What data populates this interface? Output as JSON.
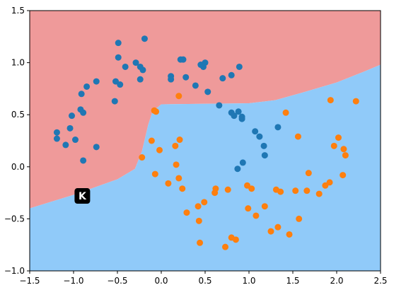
{
  "chart_data": {
    "type": "scatter",
    "title": "",
    "xlabel": "",
    "ylabel": "",
    "xlim": [
      -1.5,
      2.5
    ],
    "ylim": [
      -1.0,
      1.5
    ],
    "grid": false,
    "legend": "none",
    "x_ticks": [
      "−1.5",
      "−1.0",
      "−0.5",
      "0.0",
      "0.5",
      "1.0",
      "1.5",
      "2.0",
      "2.5"
    ],
    "x_tick_values": [
      -1.5,
      -1.0,
      -0.5,
      0.0,
      0.5,
      1.0,
      1.5,
      2.0,
      2.5
    ],
    "y_ticks": [
      "−1.0",
      "−0.5",
      "0.0",
      "0.5",
      "1.0",
      "1.5"
    ],
    "y_tick_values": [
      -1.0,
      -0.5,
      0.0,
      0.5,
      1.0,
      1.5
    ],
    "regions": {
      "upper_color": "#ef9a9a",
      "lower_color": "#90caf9",
      "boundary": [
        [
          -1.5,
          -0.4
        ],
        [
          -1.0,
          -0.27
        ],
        [
          -0.5,
          -0.12
        ],
        [
          -0.3,
          -0.02
        ],
        [
          -0.22,
          0.15
        ],
        [
          -0.15,
          0.4
        ],
        [
          -0.1,
          0.53
        ],
        [
          0.0,
          0.6
        ],
        [
          0.5,
          0.605
        ],
        [
          1.0,
          0.61
        ],
        [
          1.3,
          0.64
        ],
        [
          1.6,
          0.71
        ],
        [
          2.0,
          0.81
        ],
        [
          2.3,
          0.91
        ],
        [
          2.5,
          0.98
        ]
      ]
    },
    "series": [
      {
        "color": "#1f77b4",
        "points": [
          [
            -1.19,
            0.27
          ],
          [
            -1.19,
            0.33
          ],
          [
            -1.09,
            0.21
          ],
          [
            -1.04,
            0.37
          ],
          [
            -1.02,
            0.49
          ],
          [
            -0.98,
            0.26
          ],
          [
            -0.92,
            0.55
          ],
          [
            -0.91,
            0.7
          ],
          [
            -0.89,
            0.52
          ],
          [
            -0.85,
            0.77
          ],
          [
            -0.74,
            0.82
          ],
          [
            -0.74,
            0.19
          ],
          [
            -0.89,
            0.06
          ],
          [
            -0.53,
            0.63
          ],
          [
            -0.52,
            0.82
          ],
          [
            -0.49,
            1.19
          ],
          [
            -0.49,
            1.05
          ],
          [
            -0.47,
            0.79
          ],
          [
            -0.41,
            0.96
          ],
          [
            -0.29,
            1.0
          ],
          [
            -0.24,
            0.84
          ],
          [
            -0.24,
            0.96
          ],
          [
            -0.21,
            0.93
          ],
          [
            -0.19,
            1.23
          ],
          [
            0.11,
            0.87
          ],
          [
            0.11,
            0.84
          ],
          [
            0.22,
            1.03
          ],
          [
            0.25,
            1.03
          ],
          [
            0.28,
            0.86
          ],
          [
            0.39,
            0.78
          ],
          [
            0.45,
            0.98
          ],
          [
            0.48,
            0.96
          ],
          [
            0.5,
            1.0
          ],
          [
            0.53,
            0.72
          ],
          [
            0.66,
            0.59
          ],
          [
            0.7,
            0.85
          ],
          [
            0.8,
            0.88
          ],
          [
            0.89,
            0.96
          ],
          [
            0.8,
            0.52
          ],
          [
            0.83,
            0.49
          ],
          [
            0.88,
            0.53
          ],
          [
            0.92,
            0.48
          ],
          [
            0.92,
            0.46
          ],
          [
            0.87,
            -0.02
          ],
          [
            0.93,
            0.04
          ],
          [
            1.07,
            0.34
          ],
          [
            1.12,
            0.29
          ],
          [
            1.17,
            0.2
          ],
          [
            1.18,
            0.11
          ],
          [
            1.33,
            0.38
          ]
        ]
      },
      {
        "color": "#ff7f0e",
        "points": [
          [
            -0.11,
            0.25
          ],
          [
            -0.08,
            0.54
          ],
          [
            -0.06,
            0.53
          ],
          [
            -0.02,
            0.16
          ],
          [
            -0.22,
            0.09
          ],
          [
            -0.07,
            -0.07
          ],
          [
            0.08,
            -0.16
          ],
          [
            0.16,
            0.2
          ],
          [
            0.17,
            0.02
          ],
          [
            0.2,
            0.68
          ],
          [
            0.2,
            -0.11
          ],
          [
            0.21,
            0.26
          ],
          [
            0.24,
            -0.21
          ],
          [
            0.29,
            -0.44
          ],
          [
            0.42,
            -0.38
          ],
          [
            0.43,
            -0.52
          ],
          [
            0.44,
            -0.73
          ],
          [
            0.49,
            -0.34
          ],
          [
            0.61,
            -0.25
          ],
          [
            0.62,
            -0.21
          ],
          [
            0.73,
            -0.77
          ],
          [
            0.76,
            -0.22
          ],
          [
            0.8,
            -0.68
          ],
          [
            0.85,
            -0.7
          ],
          [
            0.98,
            -0.18
          ],
          [
            0.99,
            -0.4
          ],
          [
            1.03,
            -0.21
          ],
          [
            1.08,
            -0.47
          ],
          [
            1.18,
            -0.38
          ],
          [
            1.25,
            -0.62
          ],
          [
            1.31,
            -0.22
          ],
          [
            1.33,
            -0.58
          ],
          [
            1.36,
            -0.24
          ],
          [
            1.42,
            0.52
          ],
          [
            1.46,
            -0.65
          ],
          [
            1.53,
            -0.23
          ],
          [
            1.56,
            0.29
          ],
          [
            1.57,
            -0.5
          ],
          [
            1.66,
            -0.23
          ],
          [
            1.68,
            -0.06
          ],
          [
            1.8,
            -0.26
          ],
          [
            1.87,
            -0.18
          ],
          [
            1.92,
            -0.15
          ],
          [
            1.93,
            0.64
          ],
          [
            1.97,
            0.2
          ],
          [
            2.02,
            0.28
          ],
          [
            2.07,
            -0.08
          ],
          [
            2.08,
            0.17
          ],
          [
            2.1,
            0.11
          ],
          [
            2.22,
            0.63
          ]
        ]
      }
    ],
    "annotations": [
      {
        "text": "K",
        "x": -0.9,
        "y": -0.28,
        "color": "#ffffff",
        "background": "#000000"
      }
    ]
  }
}
